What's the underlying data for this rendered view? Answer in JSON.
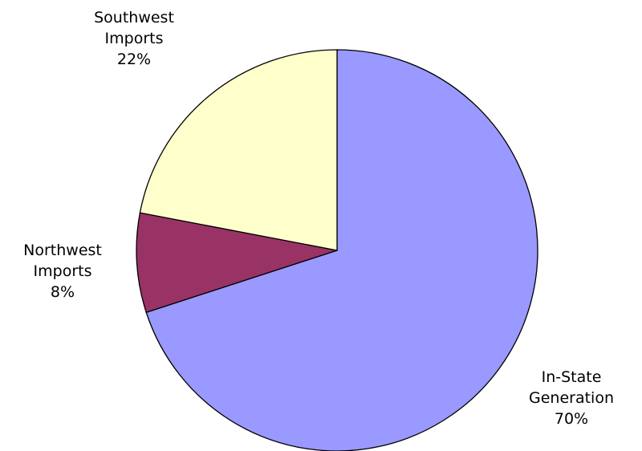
{
  "chart_data": {
    "type": "pie",
    "categories": [
      "In-State Generation",
      "Northwest Imports",
      "Southwest Imports"
    ],
    "values": [
      70,
      8,
      22
    ],
    "value_labels": [
      "70%",
      "8%",
      "22%"
    ],
    "colors": [
      "#9999ff",
      "#993366",
      "#ffffcc"
    ]
  }
}
